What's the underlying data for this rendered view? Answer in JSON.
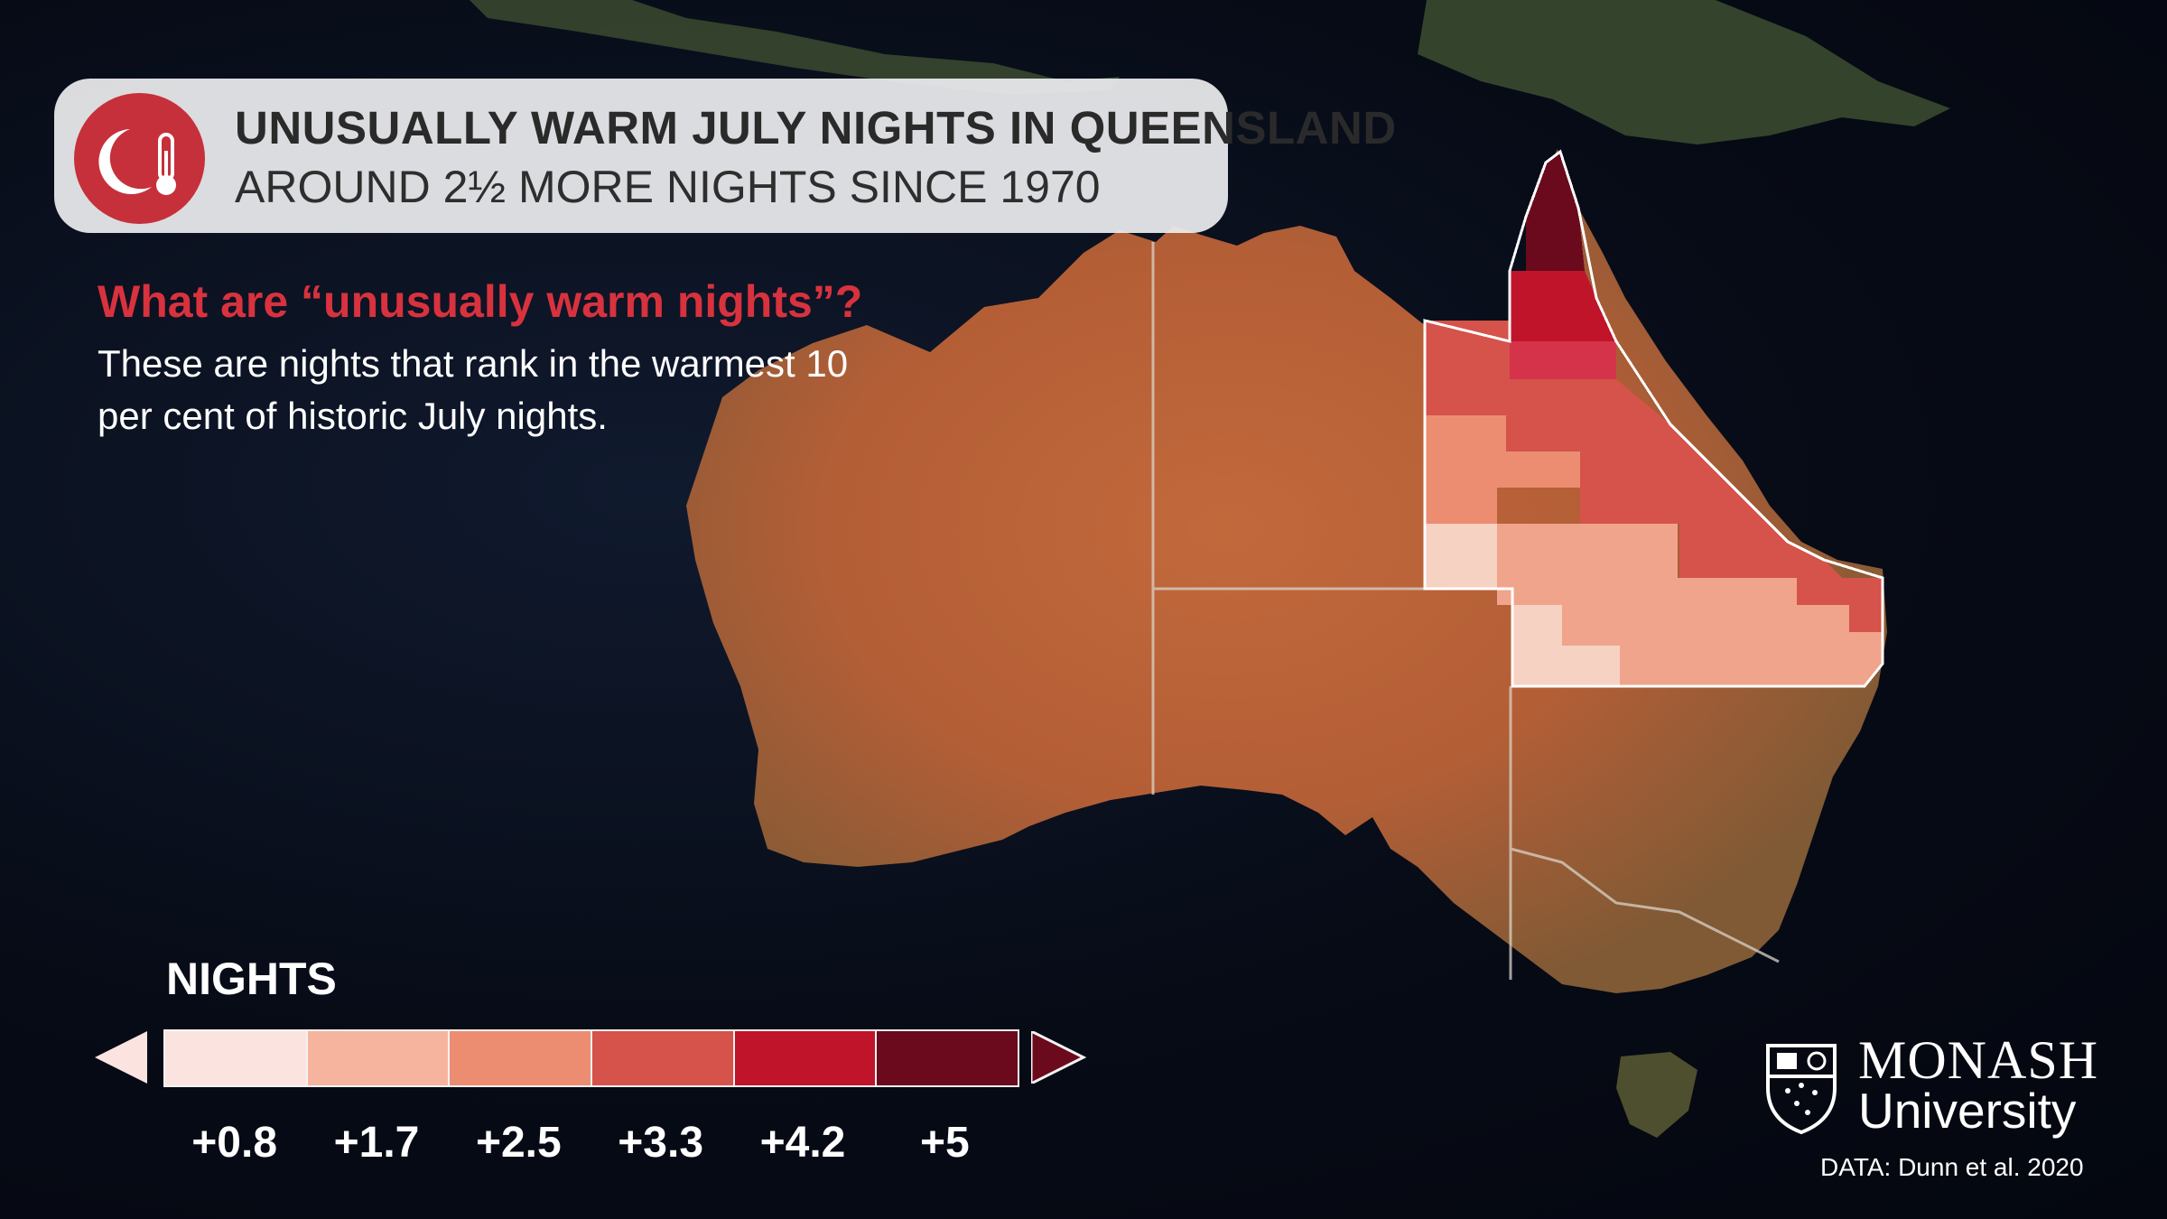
{
  "header": {
    "title": "UNUSUALLY WARM JULY NIGHTS IN QUEENSLAND",
    "subtitle": "AROUND 2½ MORE NIGHTS SINCE 1970",
    "icon": "moon-thermometer-icon",
    "badge_color": "#c6303b"
  },
  "explainer": {
    "question": "What are “unusually warm nights”?",
    "definition": "These are nights that rank in the warmest 10 per cent of historic July nights."
  },
  "legend": {
    "title": "NIGHTS",
    "ticks": [
      "+0.8",
      "+1.7",
      "+2.5",
      "+3.3",
      "+4.2",
      "+5"
    ],
    "colors": [
      "#fbe4df",
      "#f6b49e",
      "#ec8d72",
      "#d5534a",
      "#c0142b",
      "#6b0a1c"
    ],
    "below_arrow_color": "#fbe4df",
    "above_arrow_color": "#6b0a1c"
  },
  "map": {
    "region": "Queensland",
    "land_color": "#b8653a"
  },
  "branding": {
    "logo_line1": "MONASH",
    "logo_line2": "University",
    "credit": "DATA: Dunn et al. 2020"
  }
}
